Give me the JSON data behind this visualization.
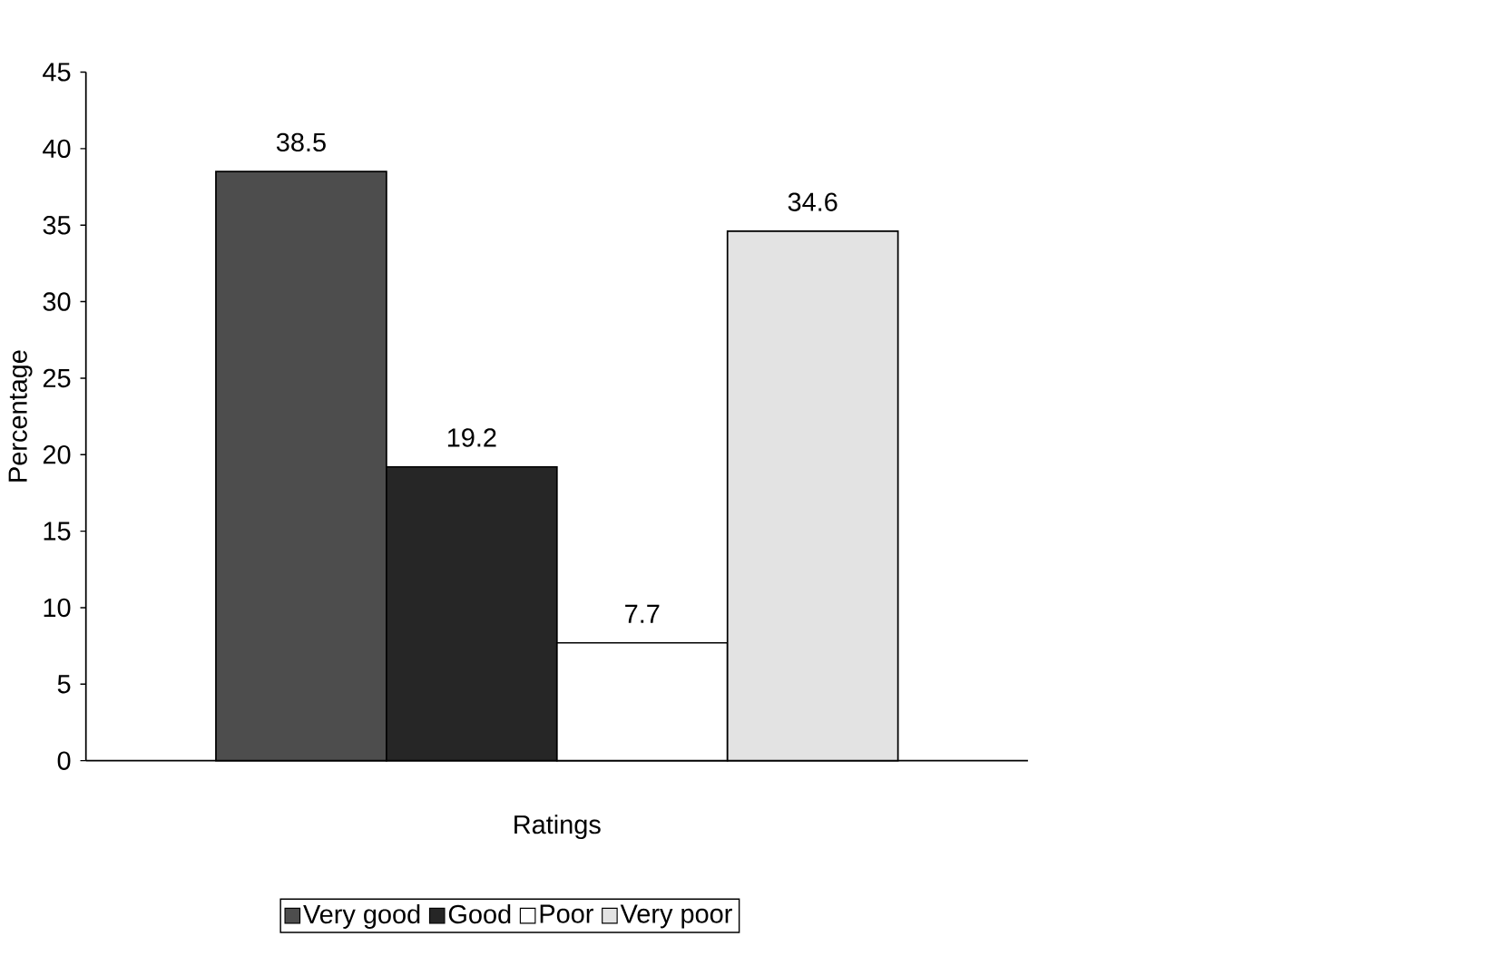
{
  "chart_data": {
    "type": "bar",
    "xlabel": "Ratings",
    "ylabel": "Percentage",
    "categories": [
      null
    ],
    "series": [
      {
        "name": "Very good",
        "color": "#4d4d4d",
        "values": [
          38.5
        ]
      },
      {
        "name": "Good",
        "color": "#262626",
        "values": [
          19.2
        ]
      },
      {
        "name": "Poor",
        "color": "#ffffff",
        "values": [
          7.7
        ]
      },
      {
        "name": "Very poor",
        "color": "#e3e3e3",
        "values": [
          34.6
        ]
      }
    ],
    "ylim": [
      0,
      45
    ],
    "yticks": [
      0,
      5,
      10,
      15,
      20,
      25,
      30,
      35,
      40,
      45
    ],
    "data_labels": true,
    "legend": "bottom",
    "grid": false
  }
}
